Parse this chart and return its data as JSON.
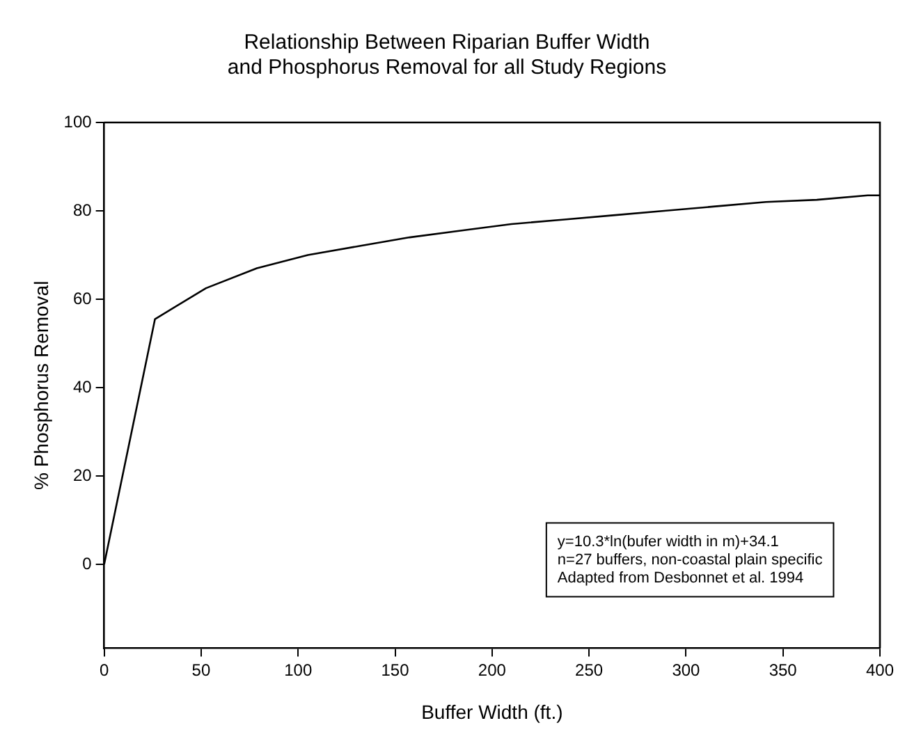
{
  "chart_data": {
    "type": "line",
    "title": "Relationship Between Riparian Buffer Width\nand Phosphorus Removal for all Study Regions",
    "xlabel": "Buffer Width (ft.)",
    "ylabel": "% Phosphorus Removal",
    "x": [
      0,
      26.2,
      52.5,
      78.7,
      105,
      131.2,
      157.5,
      183.7,
      210,
      236.2,
      262.5,
      288.7,
      315,
      341.2,
      367.5,
      393.7,
      400
    ],
    "series": [
      {
        "color": "#000000",
        "values": [
          0,
          55.5,
          62.5,
          67,
          70,
          72,
          74,
          75.5,
          77,
          78,
          79,
          80,
          81,
          82,
          82.5,
          83.5,
          83.5
        ]
      }
    ],
    "xlim": [
      0,
      400
    ],
    "xticks": [
      0,
      50,
      100,
      150,
      200,
      250,
      300,
      350,
      400
    ],
    "ylim": [
      -19,
      100
    ],
    "yticks": [
      0,
      20,
      40,
      60,
      80,
      100
    ],
    "grid": false,
    "legend": false,
    "marker": "none",
    "line_style": "solid",
    "annotations": [
      "y=10.3*ln(bufer width in m)+34.1",
      "n=27 buffers, non-coastal plain specific",
      "Adapted from Desbonnet et al. 1994"
    ]
  }
}
